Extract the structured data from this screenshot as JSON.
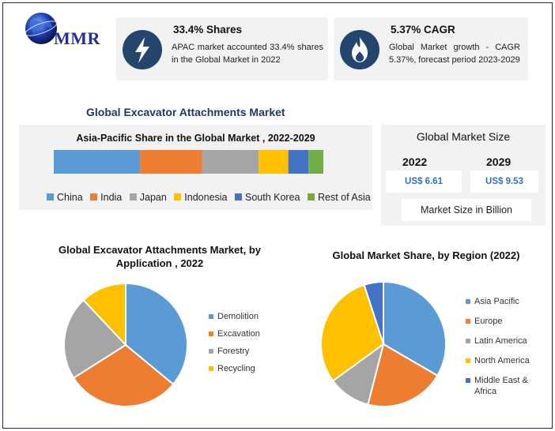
{
  "logo": {
    "text": "MMR"
  },
  "cards": {
    "shares": {
      "title": "33.4% Shares",
      "text": "APAC market accounted 33.4% shares in the Global Market in 2022",
      "icon": "lightning-icon"
    },
    "cagr": {
      "title": "5.37% CAGR",
      "text": "Global Market growth - CAGR 5.37%, forecast period 2023-2029",
      "icon": "flame-icon"
    }
  },
  "main_title": "Global Excavator Attachments Market",
  "market_size": {
    "title": "Global Market Size",
    "year1": "2022",
    "value1": "US$ 6.61",
    "year2": "2029",
    "value2": "US$ 9.53",
    "unit": "Market Size in Billion"
  },
  "colors": {
    "blue": "#5b9bd5",
    "orange": "#ed7d31",
    "gray": "#a5a5a5",
    "yellow": "#ffc000",
    "darkblue": "#4472c4",
    "green": "#70ad47",
    "navy": "#24466d"
  },
  "chart_data": [
    {
      "type": "bar",
      "title": "Asia-Pacific Share in the Global Market , 2022-2029",
      "stacked": true,
      "orientation": "horizontal",
      "series": [
        {
          "name": "China",
          "value": 32,
          "color": "#5b9bd5"
        },
        {
          "name": "India",
          "value": 23,
          "color": "#ed7d31"
        },
        {
          "name": "Japan",
          "value": 21,
          "color": "#a5a5a5"
        },
        {
          "name": "Indonesia",
          "value": 11,
          "color": "#ffc000"
        },
        {
          "name": "South Korea",
          "value": 7.5,
          "color": "#4472c4"
        },
        {
          "name": "Rest of Asia",
          "value": 5.5,
          "color": "#70ad47"
        }
      ],
      "legend": "bottom"
    },
    {
      "type": "pie",
      "title": "Global Excavator Attachments Market,  by Application , 2022",
      "slices": [
        {
          "name": "Demolition",
          "value": 36,
          "color": "#5b9bd5"
        },
        {
          "name": "Excavation",
          "value": 30,
          "color": "#ed7d31"
        },
        {
          "name": "Forestry",
          "value": 22,
          "color": "#a5a5a5"
        },
        {
          "name": "Recycling",
          "value": 12,
          "color": "#ffc000"
        }
      ],
      "legend": "right"
    },
    {
      "type": "pie",
      "title": "Global Market Share, by Region (2022)",
      "slices": [
        {
          "name": "Asia Pacific",
          "value": 33.4,
          "color": "#5b9bd5"
        },
        {
          "name": "Europe",
          "value": 20.6,
          "color": "#ed7d31"
        },
        {
          "name": "Latin America",
          "value": 11,
          "color": "#a5a5a5"
        },
        {
          "name": "North America",
          "value": 30,
          "color": "#ffc000"
        },
        {
          "name": "Middle East & Africa",
          "value": 5,
          "color": "#4472c4"
        }
      ],
      "legend": "right"
    }
  ]
}
